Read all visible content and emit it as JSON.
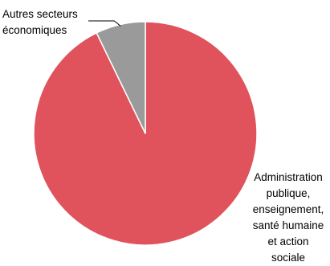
{
  "chart_data": {
    "type": "pie",
    "title": "",
    "slices": [
      {
        "label": "Administration\npublique,\nenseignement,\nsanté humaine\net action\nsociale",
        "value": 92.8,
        "color": "#e0535c"
      },
      {
        "label": "Autres secteurs\néconomiques",
        "value": 7.2,
        "color": "#9a9a9a"
      }
    ],
    "start_angle_deg": 0,
    "direction": "clockwise",
    "slice_border_color": "#ffffff",
    "leader_line_color": "#000000",
    "legend": "none"
  }
}
